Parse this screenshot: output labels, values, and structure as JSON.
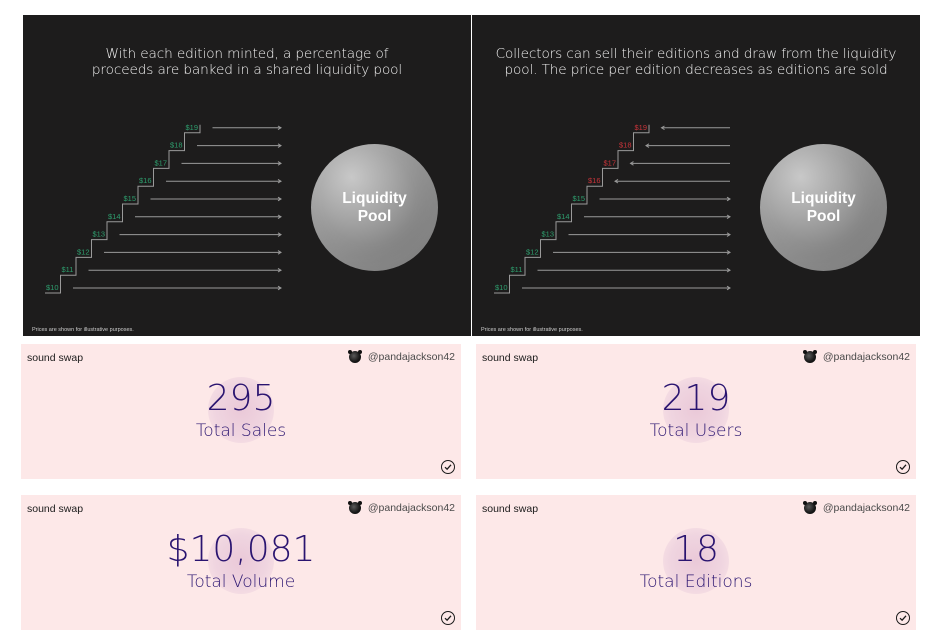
{
  "left_panel": {
    "heading_lines": [
      "With each edition minted, a percentage of",
      "proceeds are banked in a shared liquidity pool"
    ],
    "pool_label_lines": [
      "Liquidity",
      "Pool"
    ],
    "footnote": "Prices are shown for illustrative purposes.",
    "steps": [
      {
        "price": "$10",
        "state": "mint"
      },
      {
        "price": "$11",
        "state": "mint"
      },
      {
        "price": "$12",
        "state": "mint"
      },
      {
        "price": "$13",
        "state": "mint"
      },
      {
        "price": "$14",
        "state": "mint"
      },
      {
        "price": "$15",
        "state": "mint"
      },
      {
        "price": "$16",
        "state": "mint"
      },
      {
        "price": "$17",
        "state": "mint"
      },
      {
        "price": "$18",
        "state": "mint"
      },
      {
        "price": "$19",
        "state": "mint"
      }
    ]
  },
  "right_panel": {
    "heading_lines": [
      "Collectors can sell their editions and draw from the liquidity",
      "pool. The price per edition decreases as editions are sold"
    ],
    "pool_label_lines": [
      "Liquidity",
      "Pool"
    ],
    "footnote": "Prices are shown for illustrative purposes.",
    "steps": [
      {
        "price": "$10",
        "state": "mint"
      },
      {
        "price": "$11",
        "state": "mint"
      },
      {
        "price": "$12",
        "state": "mint"
      },
      {
        "price": "$13",
        "state": "mint"
      },
      {
        "price": "$14",
        "state": "mint"
      },
      {
        "price": "$15",
        "state": "mint"
      },
      {
        "price": "$16",
        "state": "sell"
      },
      {
        "price": "$17",
        "state": "sell"
      },
      {
        "price": "$18",
        "state": "sell"
      },
      {
        "price": "$19",
        "state": "sell"
      }
    ]
  },
  "colors": {
    "mint_price": "#2e9e6e",
    "sell_price": "#c8343a",
    "panel_bg": "#1d1c1c",
    "card_bg": "#fde8e8",
    "stat_text": "#2a1470"
  },
  "cards": {
    "sales": {
      "brand": "sound swap",
      "user": "@pandajackson42",
      "value": "295",
      "label": "Total Sales"
    },
    "users": {
      "brand": "sound swap",
      "user": "@pandajackson42",
      "value": "219",
      "label": "Total Users"
    },
    "volume": {
      "brand": "sound swap",
      "user": "@pandajackson42",
      "value": "$10,081",
      "label": "Total Volume"
    },
    "editions": {
      "brand": "sound swap",
      "user": "@pandajackson42",
      "value": "18",
      "label": "Total Editions"
    }
  },
  "icons": {
    "avatar": "panda-avatar-icon",
    "check": "check-circle-icon"
  }
}
